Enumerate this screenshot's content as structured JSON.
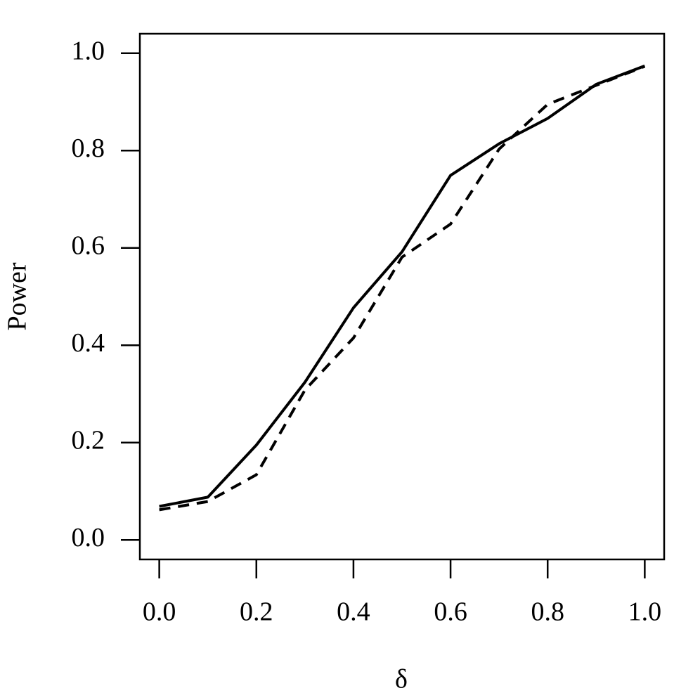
{
  "chart_data": {
    "type": "line",
    "x_label": "δ",
    "y_label": "Power",
    "x": [
      0,
      0.1,
      0.2,
      0.3,
      0.4,
      0.5,
      0.6,
      0.7,
      0.8,
      0.9,
      1
    ],
    "series": [
      {
        "color": "#000000",
        "style": "solid",
        "values": [
          0.069,
          0.088,
          0.195,
          0.324,
          0.477,
          0.592,
          0.749,
          0.814,
          0.866,
          0.936,
          0.974
        ]
      },
      {
        "color": "#000000",
        "style": "dashed",
        "values": [
          0.062,
          0.079,
          0.134,
          0.308,
          0.415,
          0.581,
          0.649,
          0.803,
          0.895,
          0.934,
          0.973
        ]
      }
    ],
    "xlim": [
      -0.04,
      1.04
    ],
    "ylim": [
      -0.04,
      1.04
    ],
    "xticks": [
      {
        "value": 0,
        "label": "0.0"
      },
      0.2,
      0.4,
      0.6,
      0.8,
      {
        "value": 1,
        "label": "1.0"
      }
    ],
    "yticks": [
      {
        "value": 0,
        "label": "0.0"
      },
      0.2,
      0.4,
      0.6,
      0.8,
      {
        "value": 1,
        "label": "1.0"
      }
    ],
    "grid": false
  }
}
